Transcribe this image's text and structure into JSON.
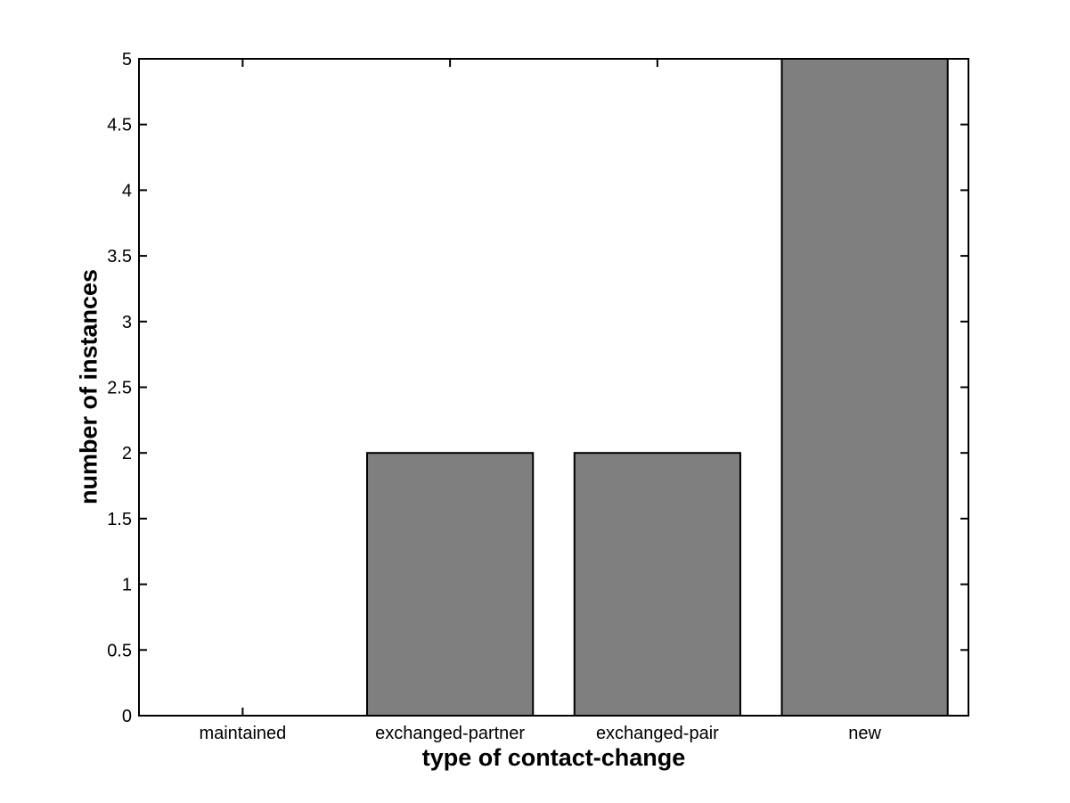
{
  "chart_data": {
    "type": "bar",
    "title": "",
    "categories": [
      "maintained",
      "exchanged-partner",
      "exchanged-pair",
      "new"
    ],
    "values": [
      0,
      2,
      2,
      5
    ],
    "xlabel": "type of contact-change",
    "ylabel": "number of instances",
    "ylim": [
      0,
      5
    ],
    "ytick_step": 0.5,
    "ytick_labels": [
      "0",
      "0.5",
      "1",
      "1.5",
      "2",
      "2.5",
      "3",
      "3.5",
      "4",
      "4.5",
      "5"
    ],
    "bar_width_fraction": 0.8,
    "grid": false,
    "legend": null,
    "colors": {
      "bar_fill": "#7f7f7f",
      "bar_edge": "#000000",
      "axis": "#000000",
      "text": "#000000",
      "background": "#ffffff"
    }
  }
}
